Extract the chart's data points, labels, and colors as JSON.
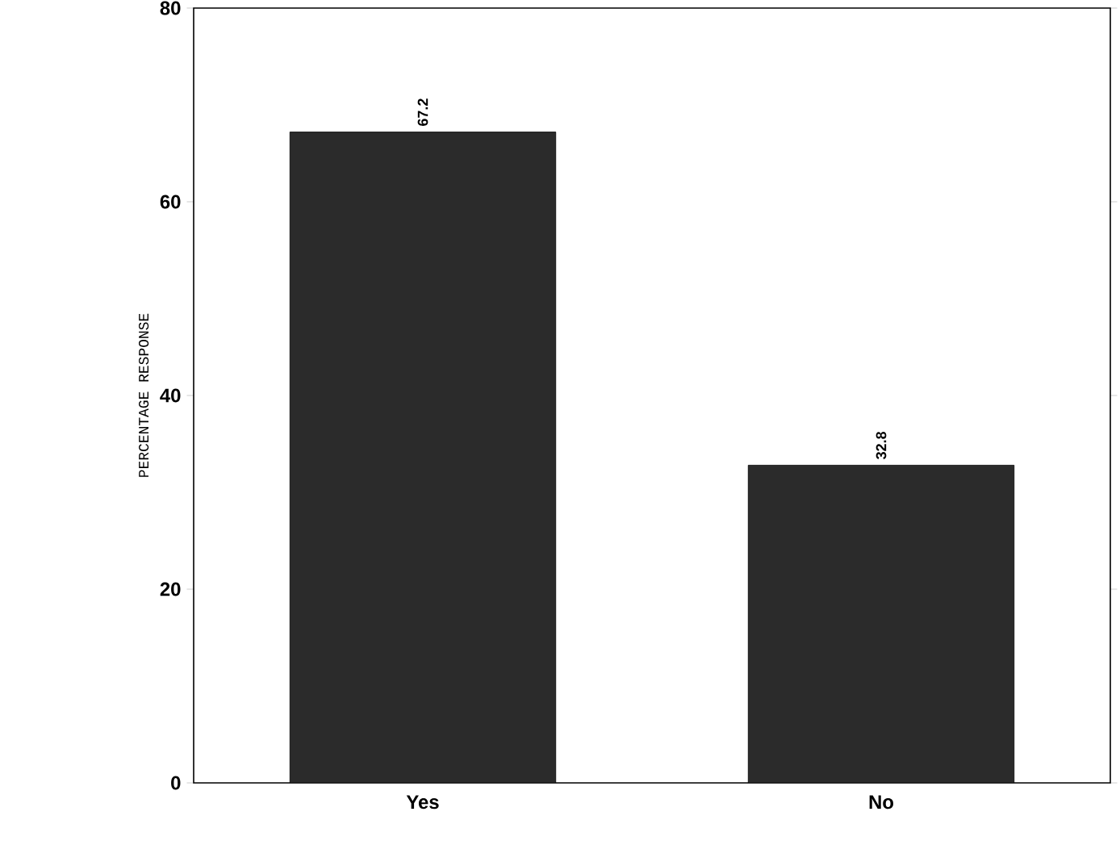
{
  "chart_data": {
    "type": "bar",
    "categories": [
      "Yes",
      "No"
    ],
    "values": [
      67.2,
      32.8
    ],
    "color": "#2b2b2b",
    "ylabel": "PERCENTAGE RESPONSE",
    "ylim": [
      0,
      80
    ],
    "yticks": [
      0,
      20,
      40,
      60,
      80
    ],
    "data_labels": true
  }
}
